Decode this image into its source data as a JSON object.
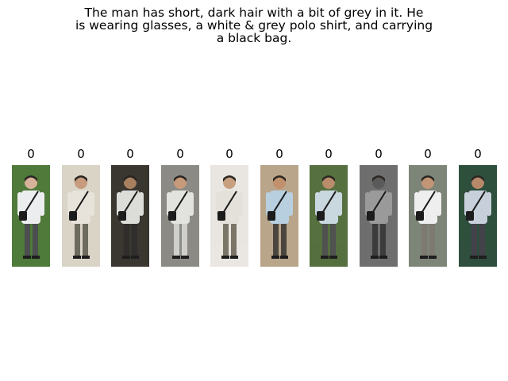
{
  "query": {
    "caption_lines": [
      "The man has short, dark hair with a bit of grey in it.  He",
      "is wearing glasses, a white & grey polo shirt, and carrying",
      "a black bag."
    ]
  },
  "results": [
    {
      "score": "0",
      "bg": "#4f7a3a",
      "shirt": "#ecedee",
      "pants": "#4c4e50",
      "skin": "#d7b29a"
    },
    {
      "score": "0",
      "bg": "#d9d4c6",
      "shirt": "#e7e3da",
      "pants": "#6d6a5e",
      "skin": "#c79c7e"
    },
    {
      "score": "0",
      "bg": "#3a3630",
      "shirt": "#dcdcd8",
      "pants": "#2f2e2c",
      "skin": "#a9805f"
    },
    {
      "score": "0",
      "bg": "#8c8a84",
      "shirt": "#e2e3de",
      "pants": "#cfd0cc",
      "skin": "#c69a7a"
    },
    {
      "score": "0",
      "bg": "#e9e6e2",
      "shirt": "#e4e1da",
      "pants": "#7b7568",
      "skin": "#c9a07f"
    },
    {
      "score": "0",
      "bg": "#b9a58a",
      "shirt": "#b8cfe0",
      "pants": "#4a463f",
      "skin": "#c1906c"
    },
    {
      "score": "0",
      "bg": "#56703f",
      "shirt": "#c9d7df",
      "pants": "#505151",
      "skin": "#b98c6b"
    },
    {
      "score": "0",
      "bg": "#6e6e6e",
      "shirt": "#9a9a9a",
      "pants": "#3c3c3c",
      "skin": "#5a5a5a"
    },
    {
      "score": "0",
      "bg": "#7d8478",
      "shirt": "#eeeeee",
      "pants": "#7d7a72",
      "skin": "#c29577"
    },
    {
      "score": "0",
      "bg": "#2f4f3d",
      "shirt": "#c7cfdb",
      "pants": "#43424a",
      "skin": "#b7896a"
    }
  ]
}
